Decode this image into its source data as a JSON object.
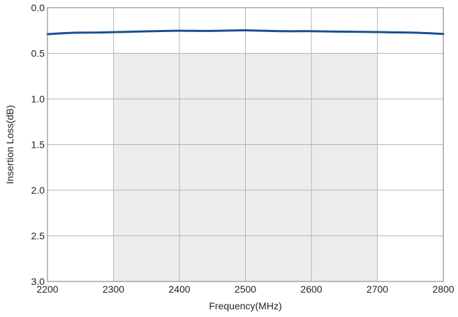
{
  "chart_data": {
    "type": "line",
    "title": "",
    "xlabel": "Frequency(MHz)",
    "ylabel": "Insertion Loss(dB)",
    "xlim": [
      2200,
      2800
    ],
    "ylim": [
      0.0,
      3.0
    ],
    "y_inverted": true,
    "grid": true,
    "x_ticks": [
      2200,
      2300,
      2400,
      2500,
      2600,
      2700,
      2800
    ],
    "y_ticks": [
      "0.0",
      "0.5",
      "1.0",
      "1.5",
      "2.0",
      "2.5",
      "3.0"
    ],
    "shaded_band": {
      "x_range": [
        2300,
        2700
      ],
      "y_range": [
        0.5,
        3.0
      ],
      "color": "#ececec"
    },
    "series": [
      {
        "color": "#1a4f8f",
        "x": [
          2200,
          2240,
          2280,
          2320,
          2360,
          2400,
          2440,
          2480,
          2500,
          2520,
          2560,
          2600,
          2640,
          2680,
          2720,
          2760,
          2800
        ],
        "y": [
          0.29,
          0.275,
          0.272,
          0.265,
          0.258,
          0.253,
          0.255,
          0.25,
          0.248,
          0.252,
          0.258,
          0.258,
          0.262,
          0.265,
          0.27,
          0.275,
          0.288
        ]
      }
    ]
  },
  "colors": {
    "grid": "#b5b5b5",
    "frame": "#7a7a7a",
    "line": "#1a4f8f",
    "band": "#ececec"
  }
}
